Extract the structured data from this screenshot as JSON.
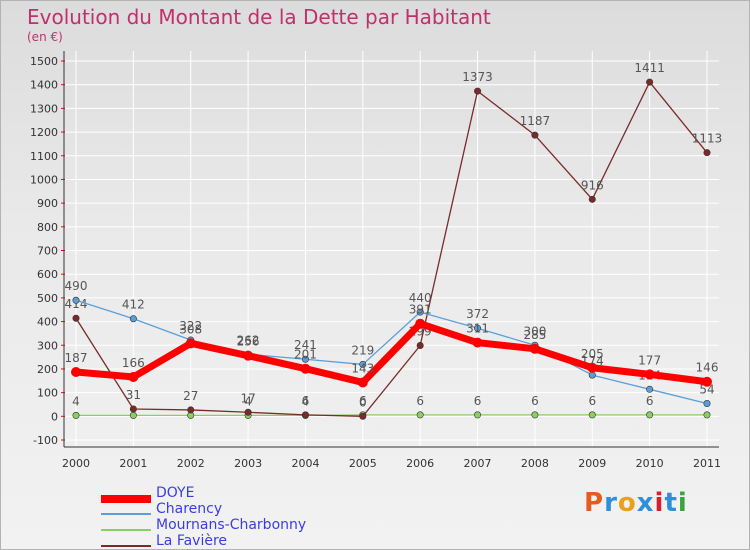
{
  "header": {
    "title": "Evolution du Montant de la Dette par Habitant",
    "subtitle": "(en €)"
  },
  "logo": {
    "text": "Proxiti",
    "colors": [
      "#e65c1c",
      "#2f8fd8",
      "#e8a020",
      "#2f8fd8",
      "#d81f2a",
      "#2f8fd8",
      "#3aa53a"
    ]
  },
  "chart_data": {
    "type": "line",
    "x": [
      "2000",
      "2001",
      "2002",
      "2003",
      "2004",
      "2005",
      "2006",
      "2007",
      "2008",
      "2009",
      "2010",
      "2011"
    ],
    "ylim": [
      -100,
      1500
    ],
    "yticks": [
      "-100",
      "0",
      "100",
      "200",
      "300",
      "400",
      "500",
      "600",
      "700",
      "800",
      "900",
      "1000",
      "1100",
      "1200",
      "1300",
      "1400",
      "1500"
    ],
    "grid": true,
    "legend_position": "bottom-left",
    "series": [
      {
        "name": "Mournans-Charbonny",
        "color": "#88d060",
        "values": [
          4,
          4,
          4,
          4,
          4,
          6,
          6,
          6,
          6,
          6,
          6,
          6
        ],
        "labels": [
          "4",
          "",
          "",
          "4",
          "4",
          "6",
          "6",
          "6",
          "6",
          "6",
          "6",
          ""
        ]
      },
      {
        "name": "La Favière",
        "color": "#7a2a2a",
        "values": [
          414,
          31,
          27,
          17,
          6,
          0,
          299,
          1373,
          1187,
          916,
          1411,
          1113
        ],
        "labels": [
          "414",
          "31",
          "27",
          "17",
          "6",
          "0",
          "299",
          "1373",
          "1187",
          "916",
          "1411",
          "1113"
        ]
      },
      {
        "name": "Charency",
        "color": "#5c9fd8",
        "values": [
          490,
          412,
          322,
          262,
          241,
          219,
          440,
          372,
          300,
          174,
          114,
          54
        ],
        "labels": [
          "490",
          "412",
          "322",
          "262",
          "241",
          "219",
          "440",
          "372",
          "300",
          "174",
          "114",
          "54"
        ]
      },
      {
        "name": "DOYE",
        "color": "#ff0000",
        "values": [
          187,
          166,
          308,
          256,
          201,
          143,
          391,
          311,
          285,
          205,
          177,
          146
        ],
        "labels": [
          "187",
          "166",
          "308",
          "256",
          "201",
          "143",
          "391",
          "311",
          "285",
          "205",
          "177",
          "146"
        ]
      }
    ]
  },
  "legend": {
    "items": [
      {
        "label": "DOYE",
        "color": "#ff0000"
      },
      {
        "label": "Charency",
        "color": "#5c9fd8"
      },
      {
        "label": "Mournans-Charbonny",
        "color": "#88d060"
      },
      {
        "label": "La Favière",
        "color": "#7a2a2a"
      }
    ]
  }
}
